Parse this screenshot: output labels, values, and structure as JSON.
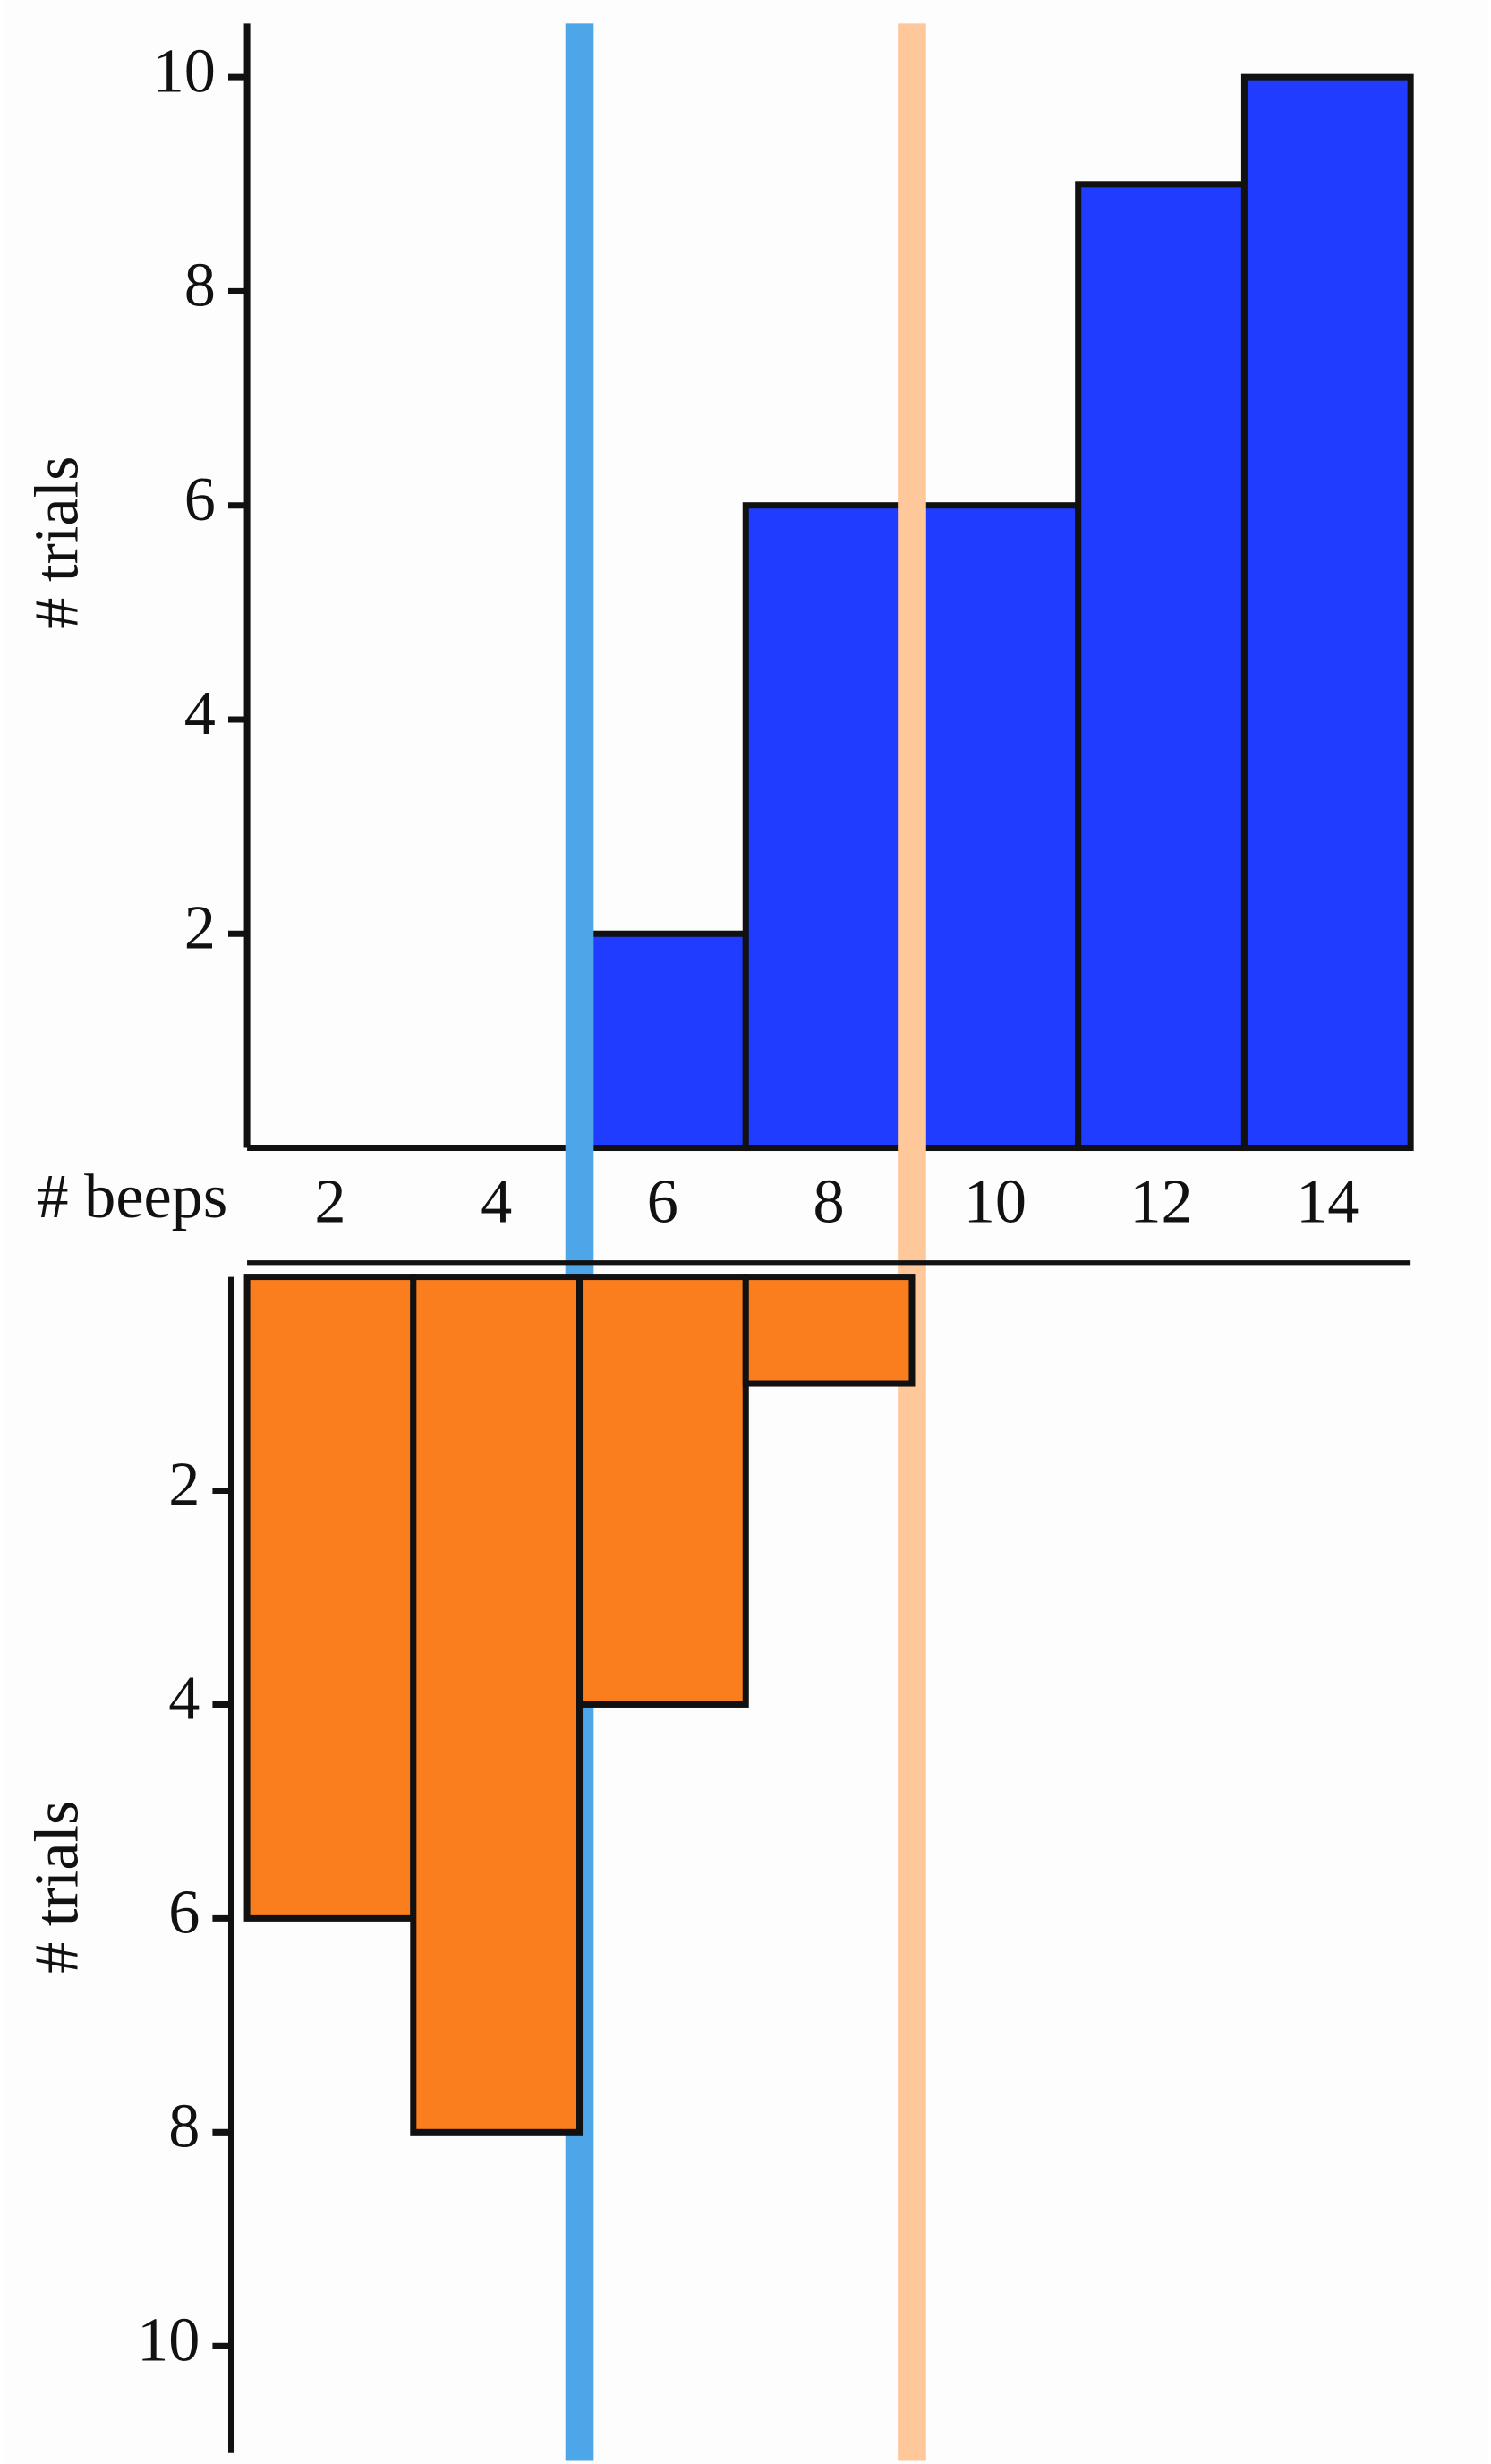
{
  "chart_data": [
    {
      "type": "histogram",
      "x_label": "# beeps",
      "y_label": "# trials",
      "bins": [
        1,
        3,
        5,
        7,
        9,
        11,
        13,
        15
      ],
      "series": [
        {
          "color": "#1f3cff",
          "values": [
            0,
            0,
            2,
            6,
            6,
            9,
            10
          ]
        }
      ],
      "xlim": [
        1,
        15
      ],
      "xticks": [
        2,
        4,
        6,
        8,
        10,
        12,
        14
      ],
      "ylim": [
        0,
        10.5
      ],
      "yticks": [
        2,
        4,
        6,
        8,
        10
      ],
      "vlines": [
        {
          "x": 5,
          "color": "#4da6e8"
        },
        {
          "x": 9,
          "color": "#ffc89a"
        }
      ]
    },
    {
      "type": "histogram",
      "y_label": "# trials",
      "y_inverted": true,
      "bins": [
        1,
        3,
        5,
        7,
        9,
        11,
        13,
        15
      ],
      "series": [
        {
          "color": "#fa7d1e",
          "values": [
            6,
            8,
            4,
            1,
            0,
            0,
            0
          ]
        }
      ],
      "xlim": [
        1,
        15
      ],
      "ylim": [
        0,
        11
      ],
      "yticks": [
        2,
        4,
        6,
        8,
        10
      ]
    }
  ]
}
